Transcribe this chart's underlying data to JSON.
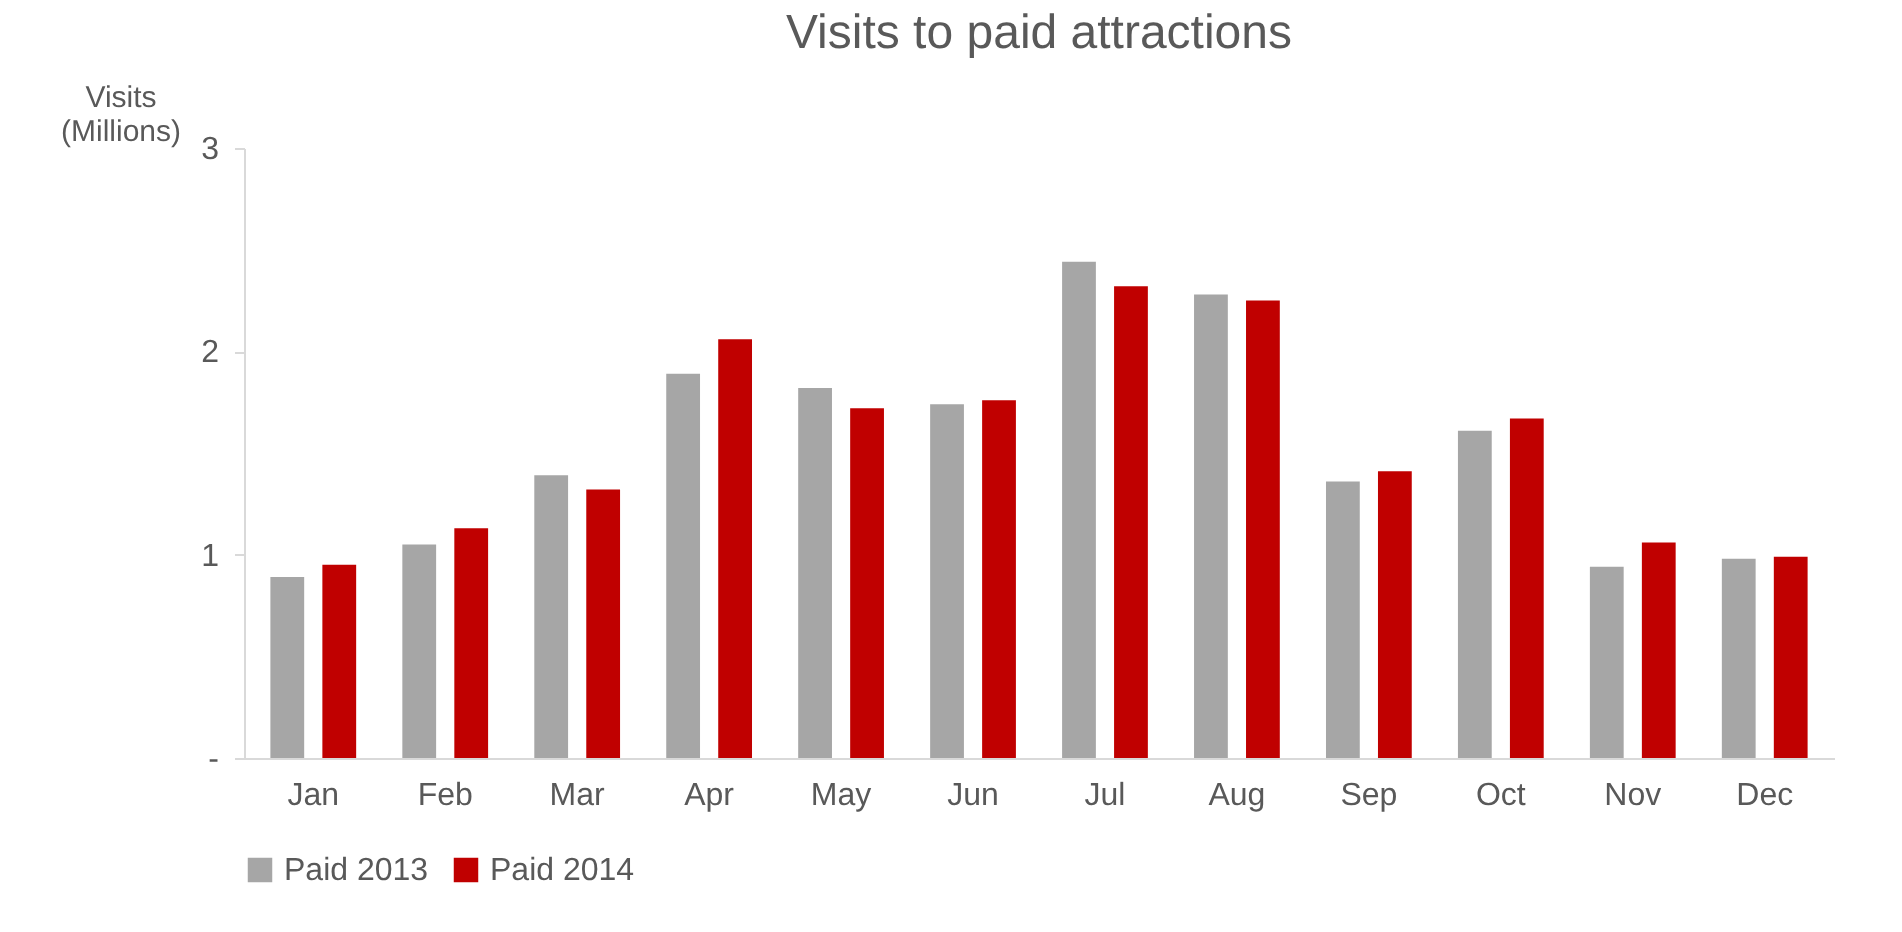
{
  "chart_data": {
    "type": "bar",
    "title": "Visits to paid attractions",
    "ylabel": "Visits (Millions)",
    "categories": [
      "Jan",
      "Feb",
      "Mar",
      "Apr",
      "May",
      "Jun",
      "Jul",
      "Aug",
      "Sep",
      "Oct",
      "Nov",
      "Dec"
    ],
    "series": [
      {
        "name": "Paid 2013",
        "color": "#a6a6a6",
        "values": [
          0.89,
          1.05,
          1.39,
          1.89,
          1.82,
          1.74,
          2.44,
          2.28,
          1.36,
          1.61,
          0.94,
          0.98
        ]
      },
      {
        "name": "Paid 2014",
        "color": "#c00000",
        "values": [
          0.95,
          1.13,
          1.32,
          2.06,
          1.72,
          1.76,
          2.32,
          2.25,
          1.41,
          1.67,
          1.06,
          0.99
        ]
      }
    ],
    "ylim": [
      0,
      3
    ],
    "yticks": [
      {
        "value": 0,
        "label": "-"
      },
      1,
      2,
      3
    ],
    "grid": false,
    "legend": "bottom"
  }
}
